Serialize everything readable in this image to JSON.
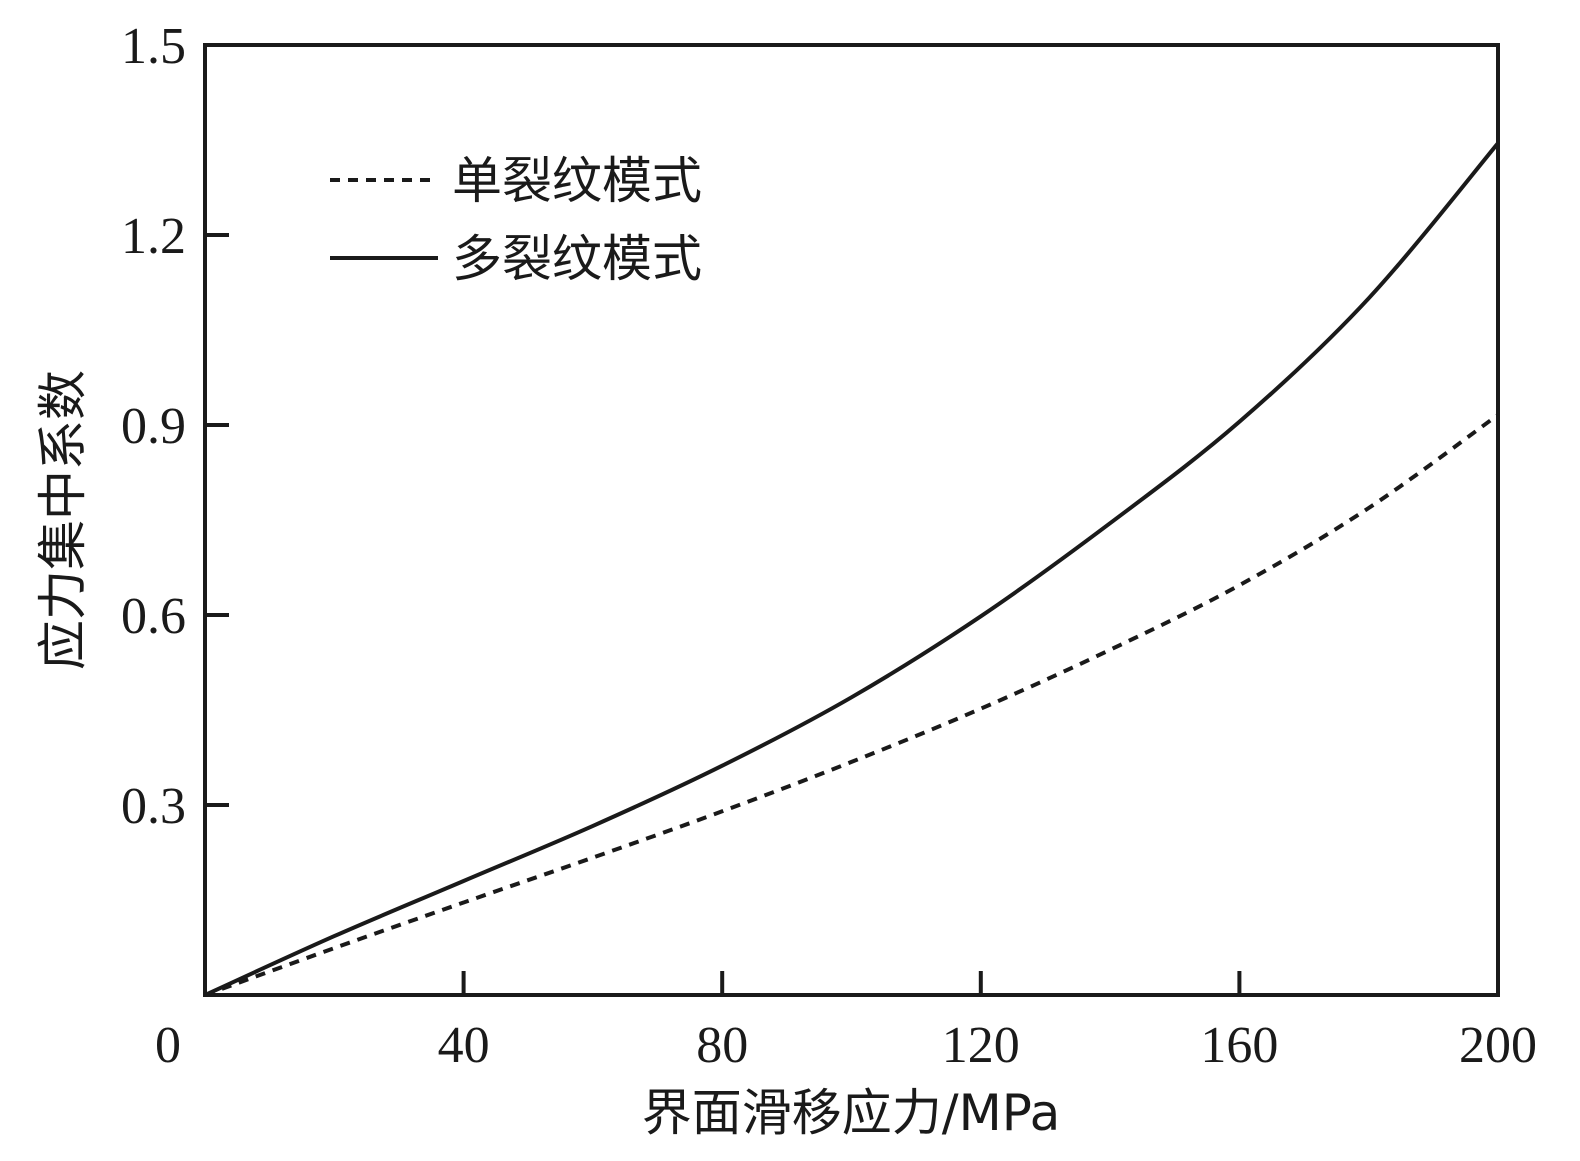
{
  "chart_data": {
    "type": "line",
    "xlabel": "界面滑移应力/MPa",
    "ylabel": "应力集中系数",
    "xlim": [
      0,
      200
    ],
    "ylim": [
      0,
      1.5
    ],
    "x_ticks": [
      0,
      40,
      80,
      120,
      160,
      200
    ],
    "x_tick_labels": [
      "0",
      "40",
      "80",
      "120",
      "160",
      "200"
    ],
    "y_ticks": [
      0.3,
      0.6,
      0.9,
      1.2,
      1.5
    ],
    "y_tick_labels": [
      "0.3",
      "0.6",
      "0.9",
      "1.2",
      "1.5"
    ],
    "grid": false,
    "legend_position": "top-left",
    "x": [
      0,
      20,
      40,
      60,
      80,
      100,
      120,
      140,
      160,
      180,
      200
    ],
    "series": [
      {
        "name": "单裂纹模式",
        "style": "dashed",
        "color": "#1a1a1a",
        "values": [
          0,
          0.074,
          0.146,
          0.217,
          0.29,
          0.368,
          0.452,
          0.545,
          0.647,
          0.769,
          0.916
        ]
      },
      {
        "name": "多裂纹模式",
        "style": "solid",
        "color": "#1a1a1a",
        "values": [
          0,
          0.093,
          0.18,
          0.267,
          0.362,
          0.47,
          0.598,
          0.745,
          0.905,
          1.1,
          1.345
        ]
      }
    ]
  }
}
